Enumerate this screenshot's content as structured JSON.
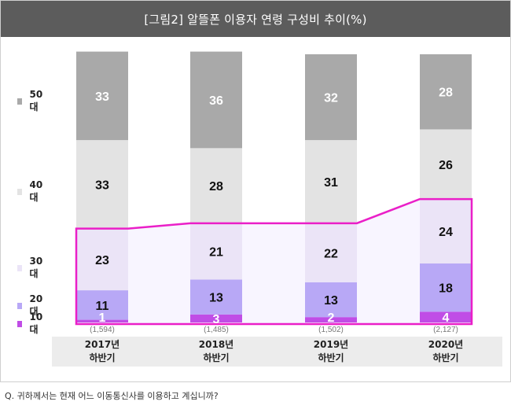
{
  "title": "[그림2] 알뜰폰 이용자 연령 구성비 추이(%)",
  "question": "Q. 귀하께서는 현재 어느 이동통신사를 이용하고 계십니까?",
  "colors": {
    "50대": "#a9a9a9",
    "40대": "#e3e3e3",
    "30대": "#ebe4f7",
    "20대": "#b8a8f6",
    "10대": "#c04de6",
    "highlight": "#ea1fc8",
    "highlight_fill": "#f8f5ff"
  },
  "chart_data": {
    "type": "bar",
    "stacked": true,
    "title": "[그림2] 알뜰폰 이용자 연령 구성비 추이(%)",
    "categories": [
      {
        "line1": "2017년",
        "line2": "하반기",
        "n": "(1,594)"
      },
      {
        "line1": "2018년",
        "line2": "하반기",
        "n": "(1,485)"
      },
      {
        "line1": "2019년",
        "line2": "하반기",
        "n": "(1,502)"
      },
      {
        "line1": "2020년",
        "line2": "하반기",
        "n": "(2,127)"
      }
    ],
    "series": [
      {
        "name": "10대",
        "values": [
          1,
          3,
          2,
          4
        ]
      },
      {
        "name": "20대",
        "values": [
          11,
          13,
          13,
          18
        ]
      },
      {
        "name": "30대",
        "values": [
          23,
          21,
          22,
          24
        ]
      },
      {
        "name": "40대",
        "values": [
          33,
          28,
          31,
          26
        ]
      },
      {
        "name": "50대",
        "values": [
          33,
          36,
          32,
          28
        ]
      }
    ],
    "legend": [
      "50대",
      "40대",
      "30대",
      "20대",
      "10대"
    ],
    "legend_position": "left",
    "highlighted_series": [
      "10대",
      "20대",
      "30대"
    ]
  }
}
